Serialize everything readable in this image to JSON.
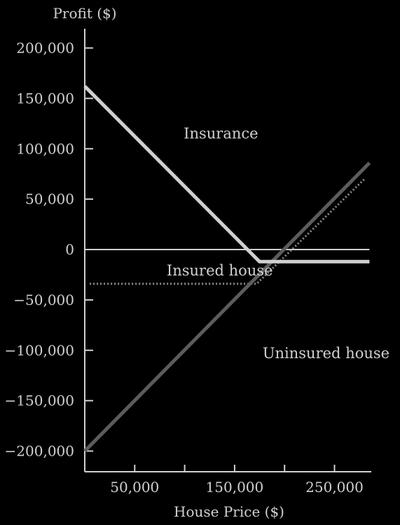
{
  "chart_data": {
    "type": "line",
    "title": "",
    "xlabel": "House Price ($)",
    "ylabel": "Profit ($)",
    "xlim": [
      0,
      290000
    ],
    "ylim": [
      -220000,
      220000
    ],
    "x_ticks": [
      {
        "value": 50000,
        "label": "50,000"
      },
      {
        "value": 100000,
        "label": ""
      },
      {
        "value": 150000,
        "label": "150,000"
      },
      {
        "value": 200000,
        "label": ""
      },
      {
        "value": 250000,
        "label": "250,000"
      }
    ],
    "y_ticks": [
      {
        "value": 200000,
        "label": "200,000"
      },
      {
        "value": 150000,
        "label": "150,000"
      },
      {
        "value": 100000,
        "label": "100,000"
      },
      {
        "value": 50000,
        "label": "50,000"
      },
      {
        "value": 0,
        "label": "0"
      },
      {
        "value": -50000,
        "label": "−50,000"
      },
      {
        "value": -100000,
        "label": "−100,000"
      },
      {
        "value": -150000,
        "label": "−150,000"
      },
      {
        "value": -200000,
        "label": "−200,000"
      }
    ],
    "grid": false,
    "legend": "none",
    "series": [
      {
        "name": "Insurance",
        "color": "#d0d0d0",
        "style": "solid",
        "x": [
          0,
          175000,
          285000
        ],
        "y": [
          162000,
          -12000,
          -12000
        ]
      },
      {
        "name": "Uninsured house",
        "color": "#5c5c5c",
        "style": "solid",
        "x": [
          0,
          285000
        ],
        "y": [
          -200000,
          86000
        ]
      },
      {
        "name": "Insured house",
        "color": "#8a8a8a",
        "style": "dotted",
        "x": [
          5000,
          172000,
          280000
        ],
        "y": [
          -34000,
          -34000,
          70000
        ]
      },
      {
        "name": "",
        "color": "#d0d0d0",
        "style": "solid",
        "x": [
          0,
          285000
        ],
        "y": [
          0,
          0
        ]
      }
    ],
    "annotations": [
      {
        "text": "Insurance",
        "x": 99000,
        "y": 115000
      },
      {
        "text": "Insured house",
        "x": 82000,
        "y": -21000
      },
      {
        "text": "Uninsured house",
        "x": 178000,
        "y": -103000
      }
    ]
  }
}
